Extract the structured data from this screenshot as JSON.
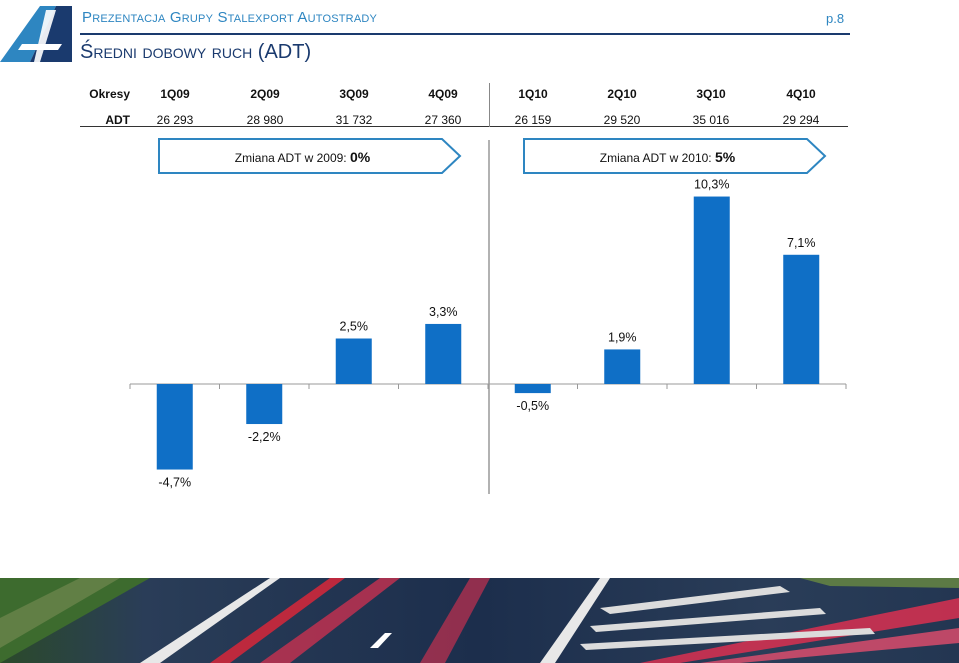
{
  "header": {
    "title": "Prezentacja Grupy Stalexport Autostrady",
    "page": "p.8",
    "subtitle": "Średni dobowy ruch (ADT)"
  },
  "table": {
    "row1_label": "Okresy",
    "row2_label": "ADT",
    "periods": [
      "1Q09",
      "2Q09",
      "3Q09",
      "4Q09",
      "1Q10",
      "2Q10",
      "3Q10",
      "4Q10"
    ],
    "adt": [
      "26 293",
      "28 980",
      "31 732",
      "27 360",
      "26 159",
      "29 520",
      "35 016",
      "29 294"
    ]
  },
  "banners": [
    {
      "text": "Zmiana ADT w 2009: ",
      "value": "0%"
    },
    {
      "text": "Zmiana ADT w 2010: ",
      "value": "5%"
    }
  ],
  "colors": {
    "bar": "#0f6fc6",
    "banner_border": "#2e86c1",
    "header": "#2e86c1",
    "title": "#1a3a6e"
  },
  "chart_data": {
    "type": "bar",
    "categories": [
      "1Q09",
      "2Q09",
      "3Q09",
      "4Q09",
      "1Q10",
      "2Q10",
      "3Q10",
      "4Q10"
    ],
    "values": [
      -4.7,
      -2.2,
      2.5,
      3.3,
      -0.5,
      1.9,
      10.3,
      7.1
    ],
    "labels": [
      "-4,7%",
      "-2,2%",
      "2,5%",
      "3,3%",
      "-0,5%",
      "1,9%",
      "10,3%",
      "7,1%"
    ],
    "title": "",
    "xlabel": "",
    "ylabel": "",
    "ylim": [
      -6,
      11
    ]
  }
}
